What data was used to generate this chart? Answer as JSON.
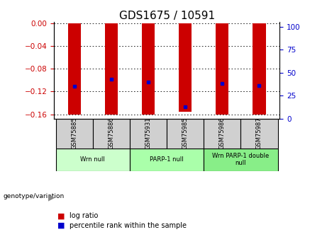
{
  "title": "GDS1675 / 10591",
  "samples": [
    "GSM75885",
    "GSM75886",
    "GSM75931",
    "GSM75985",
    "GSM75986",
    "GSM75987"
  ],
  "log_ratios": [
    -0.16,
    -0.16,
    -0.16,
    -0.155,
    -0.16,
    -0.16
  ],
  "percentile_ranks": [
    35,
    43,
    40,
    13,
    38,
    36
  ],
  "ylim_left": [
    -0.168,
    0.002
  ],
  "ylim_right": [
    0,
    105
  ],
  "left_ticks": [
    0,
    -0.04,
    -0.08,
    -0.12,
    -0.16
  ],
  "right_ticks": [
    0,
    25,
    50,
    75,
    100
  ],
  "groups": [
    {
      "label": "Wrn null",
      "samples": [
        "GSM75885",
        "GSM75886"
      ],
      "color": "#ccffcc"
    },
    {
      "label": "PARP-1 null",
      "samples": [
        "GSM75931",
        "GSM75985"
      ],
      "color": "#aaffaa"
    },
    {
      "label": "Wrn PARP-1 double\nnull",
      "samples": [
        "GSM75986",
        "GSM75987"
      ],
      "color": "#88ee88"
    }
  ],
  "bar_color": "#cc0000",
  "dot_color": "#0000cc",
  "bar_width": 0.35,
  "background_color": "#ffffff",
  "plot_bg_color": "#ffffff",
  "label_color_left": "#cc0000",
  "label_color_right": "#0000cc",
  "grid_color": "#000000",
  "sample_box_color": "#d0d0d0",
  "title_fontsize": 11,
  "tick_fontsize": 7.5,
  "legend_fontsize": 7.5
}
